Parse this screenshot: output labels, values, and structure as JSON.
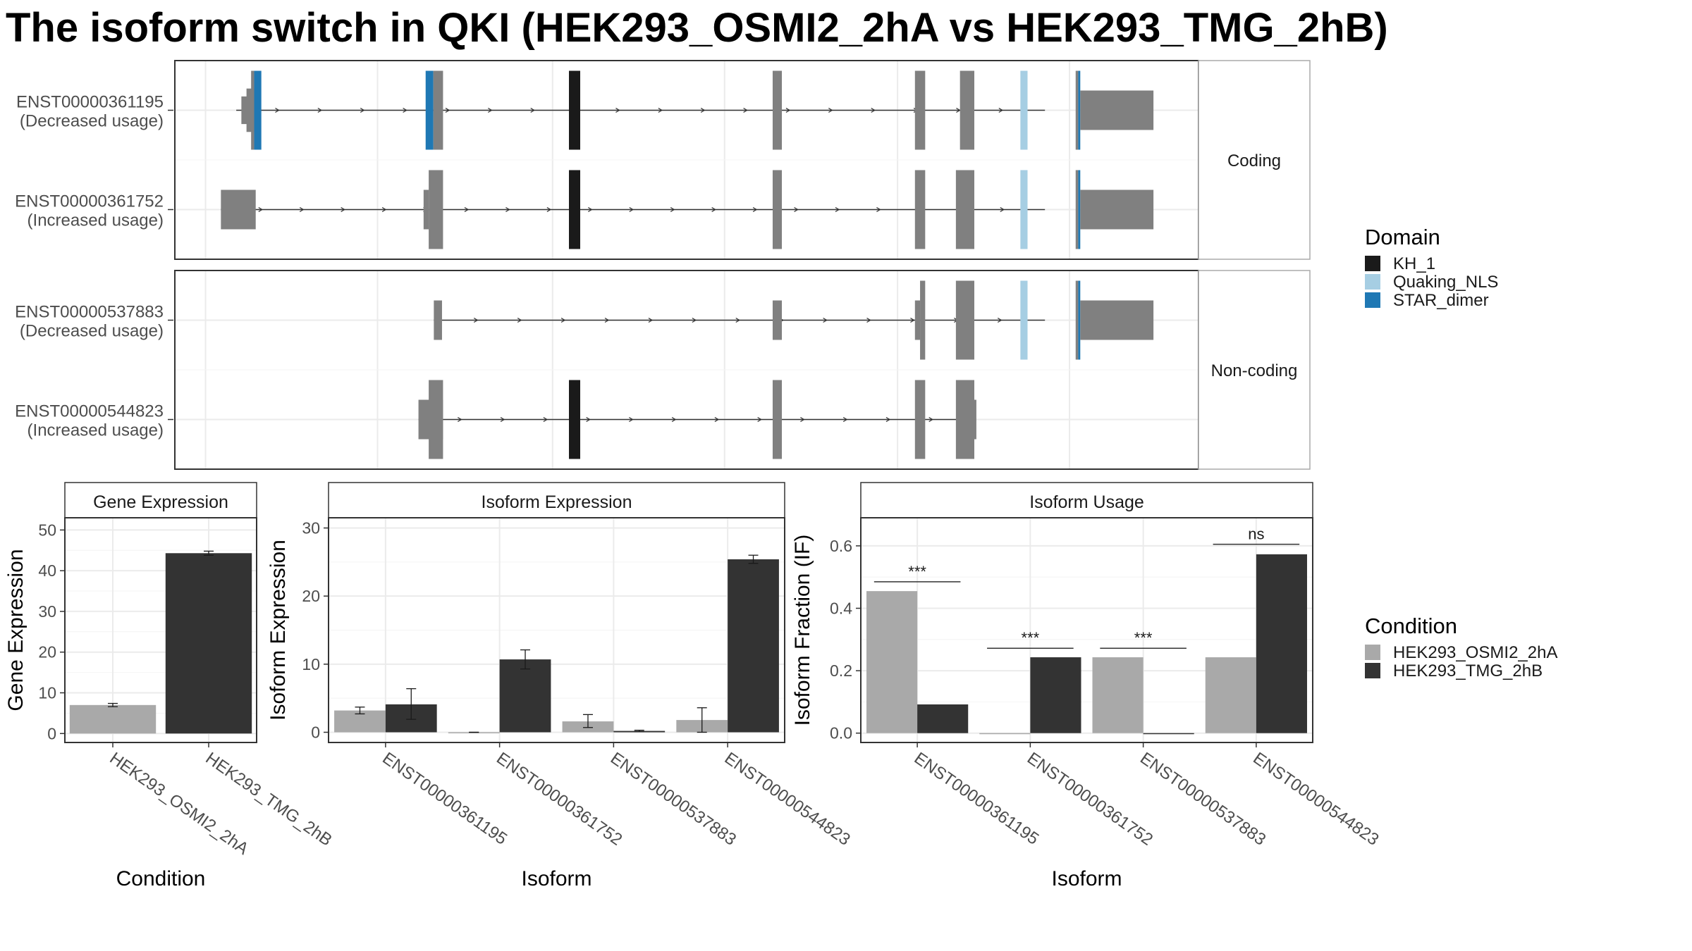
{
  "title": "The isoform switch in QKI (HEK293_OSMI2_2hA vs HEK293_TMG_2hB)",
  "colors": {
    "exon": "#808080",
    "intron": "#333333",
    "KH_1": "#1a1a1a",
    "Quaking_NLS": "#a6cee3",
    "STAR_dimer": "#1f78b4",
    "cond1": "#a9a9a9",
    "cond2": "#333333",
    "grid": "#ebebeb",
    "frame": "#333333"
  },
  "structure": {
    "facets": [
      {
        "label": "Coding",
        "transcripts": [
          {
            "id": "ENST00000361195",
            "usage": "(Decreased usage)",
            "span": [
              0.06,
              0.85
            ],
            "exons": [
              [
                0.065,
                0.078,
                0.35,
                "exon"
              ],
              [
                0.07,
                0.08,
                0.55,
                "exon"
              ],
              [
                0.0745,
                0.0775,
                1.0,
                "exon"
              ],
              [
                0.0775,
                0.0845,
                1.0,
                "STAR_dimer"
              ],
              [
                0.245,
                0.2525,
                1.0,
                "STAR_dimer"
              ],
              [
                0.2525,
                0.262,
                1.0,
                "exon"
              ],
              [
                0.385,
                0.396,
                1.0,
                "KH_1"
              ],
              [
                0.584,
                0.593,
                1.0,
                "exon"
              ],
              [
                0.723,
                0.733,
                1.0,
                "exon"
              ],
              [
                0.767,
                0.781,
                1.0,
                "exon"
              ],
              [
                0.826,
                0.833,
                1.0,
                "Quaking_NLS"
              ],
              [
                0.88,
                0.8825,
                1.0,
                "exon"
              ],
              [
                0.8825,
                0.8845,
                1.0,
                "STAR_dimer"
              ],
              [
                0.8845,
                0.956,
                0.5,
                "exon"
              ]
            ]
          },
          {
            "id": "ENST00000361752",
            "usage": "(Increased usage)",
            "span": [
              0.045,
              0.85
            ],
            "exons": [
              [
                0.045,
                0.079,
                0.5,
                "exon"
              ],
              [
                0.243,
                0.248,
                0.5,
                "exon"
              ],
              [
                0.248,
                0.262,
                1.0,
                "exon"
              ],
              [
                0.385,
                0.396,
                1.0,
                "KH_1"
              ],
              [
                0.584,
                0.593,
                1.0,
                "exon"
              ],
              [
                0.723,
                0.733,
                1.0,
                "exon"
              ],
              [
                0.763,
                0.781,
                1.0,
                "exon"
              ],
              [
                0.826,
                0.833,
                1.0,
                "Quaking_NLS"
              ],
              [
                0.88,
                0.8825,
                1.0,
                "exon"
              ],
              [
                0.8825,
                0.8845,
                1.0,
                "STAR_dimer"
              ],
              [
                0.8845,
                0.956,
                0.5,
                "exon"
              ]
            ]
          }
        ]
      },
      {
        "label": "Non-coding",
        "transcripts": [
          {
            "id": "ENST00000537883",
            "usage": "(Decreased usage)",
            "span": [
              0.253,
              0.85
            ],
            "exons": [
              [
                0.253,
                0.261,
                0.5,
                "exon"
              ],
              [
                0.584,
                0.593,
                0.5,
                "exon"
              ],
              [
                0.723,
                0.728,
                0.5,
                "exon"
              ],
              [
                0.728,
                0.733,
                1.0,
                "exon"
              ],
              [
                0.763,
                0.781,
                1.0,
                "exon"
              ],
              [
                0.826,
                0.833,
                1.0,
                "Quaking_NLS"
              ],
              [
                0.88,
                0.8825,
                1.0,
                "exon"
              ],
              [
                0.8825,
                0.8845,
                1.0,
                "STAR_dimer"
              ],
              [
                0.8845,
                0.956,
                0.5,
                "exon"
              ]
            ]
          },
          {
            "id": "ENST00000544823",
            "usage": "(Increased usage)",
            "span": [
              0.238,
              0.782
            ],
            "exons": [
              [
                0.238,
                0.262,
                0.5,
                "exon"
              ],
              [
                0.248,
                0.262,
                1.0,
                "exon"
              ],
              [
                0.385,
                0.396,
                1.0,
                "KH_1"
              ],
              [
                0.584,
                0.593,
                1.0,
                "exon"
              ],
              [
                0.723,
                0.733,
                1.0,
                "exon"
              ],
              [
                0.763,
                0.781,
                1.0,
                "exon"
              ],
              [
                0.781,
                0.783,
                0.5,
                "exon"
              ]
            ]
          }
        ]
      }
    ]
  },
  "legend_domain": {
    "title": "Domain",
    "items": [
      {
        "label": "KH_1",
        "color": "#1a1a1a"
      },
      {
        "label": "Quaking_NLS",
        "color": "#a6cee3"
      },
      {
        "label": "STAR_dimer",
        "color": "#1f78b4"
      }
    ]
  },
  "legend_condition": {
    "title": "Condition",
    "items": [
      {
        "label": "HEK293_OSMI2_2hA",
        "color": "#a9a9a9"
      },
      {
        "label": "HEK293_TMG_2hB",
        "color": "#333333"
      }
    ]
  },
  "chart_data": [
    {
      "type": "bar",
      "panel": "Gene Expression",
      "xlabel": "Condition",
      "ylabel": "Gene Expression",
      "categories": [
        "HEK293_OSMI2_2hA",
        "HEK293_TMG_2hB"
      ],
      "values": [
        7.0,
        44.3
      ],
      "errors": [
        [
          6.6,
          7.4
        ],
        [
          43.8,
          44.8
        ]
      ],
      "ylim": [
        -2.2,
        53
      ],
      "yticks": [
        0,
        10,
        20,
        30,
        40,
        50
      ],
      "grid": true
    },
    {
      "type": "bar",
      "panel": "Isoform Expression",
      "xlabel": "Isoform",
      "ylabel": "Isoform Expression",
      "categories": [
        "ENST00000361195",
        "ENST00000361752",
        "ENST00000537883",
        "ENST00000544823"
      ],
      "series": [
        {
          "name": "HEK293_OSMI2_2hA",
          "values": [
            3.2,
            0.0,
            1.6,
            1.8
          ],
          "errors": [
            [
              2.7,
              3.7
            ],
            [
              0,
              0
            ],
            [
              0.7,
              2.6
            ],
            [
              0,
              3.6
            ]
          ]
        },
        {
          "name": "HEK293_TMG_2hB",
          "values": [
            4.1,
            10.7,
            0.2,
            25.4
          ],
          "errors": [
            [
              1.9,
              6.4
            ],
            [
              9.3,
              12.1
            ],
            [
              0.1,
              0.3
            ],
            [
              24.8,
              26.0
            ]
          ]
        }
      ],
      "ylim": [
        -1.5,
        31.5
      ],
      "yticks": [
        0,
        10,
        20,
        30
      ],
      "grid": true
    },
    {
      "type": "bar",
      "panel": "Isoform Usage",
      "xlabel": "Isoform",
      "ylabel": "Isoform Fraction (IF)",
      "categories": [
        "ENST00000361195",
        "ENST00000361752",
        "ENST00000537883",
        "ENST00000544823"
      ],
      "series": [
        {
          "name": "HEK293_OSMI2_2hA",
          "values": [
            0.455,
            0.0,
            0.243,
            0.243
          ]
        },
        {
          "name": "HEK293_TMG_2hB",
          "values": [
            0.092,
            0.243,
            0.0,
            0.573
          ]
        }
      ],
      "significance": [
        "***",
        "***",
        "***",
        "ns"
      ],
      "sig_y": [
        0.485,
        0.272,
        0.272,
        0.605
      ],
      "ylim": [
        -0.03,
        0.69
      ],
      "yticks": [
        "0.0",
        "0.2",
        "0.4",
        "0.6"
      ],
      "grid": true
    }
  ]
}
